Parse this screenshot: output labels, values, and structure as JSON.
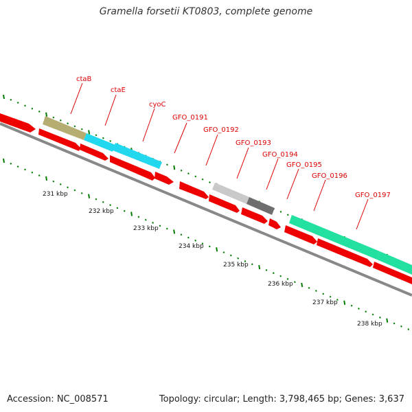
{
  "title": "Gramella forsetii KT0803, complete genome",
  "footer": {
    "accession": "Accession: NC_008571",
    "stats": "Topology: circular; Length: 3,798,465 bp; Genes: 3,637"
  },
  "colors": {
    "cds": "#ee0000",
    "backbone": "#888888",
    "gc_dots": "#007a00",
    "label_line": "#dd0000",
    "label_text": "#e00000"
  },
  "gene_labels": [
    "ctaB",
    "ctaE",
    "cyoC",
    "GFO_0191",
    "GFO_0192",
    "GFO_0193",
    "GFO_0194",
    "GFO_0195",
    "GFO_0196",
    "GFO_0197"
  ],
  "scale_labels": [
    "231 kbp",
    "232 kbp",
    "233 kbp",
    "234 kbp",
    "235 kbp",
    "236 kbp",
    "237 kbp",
    "238 kbp"
  ]
}
